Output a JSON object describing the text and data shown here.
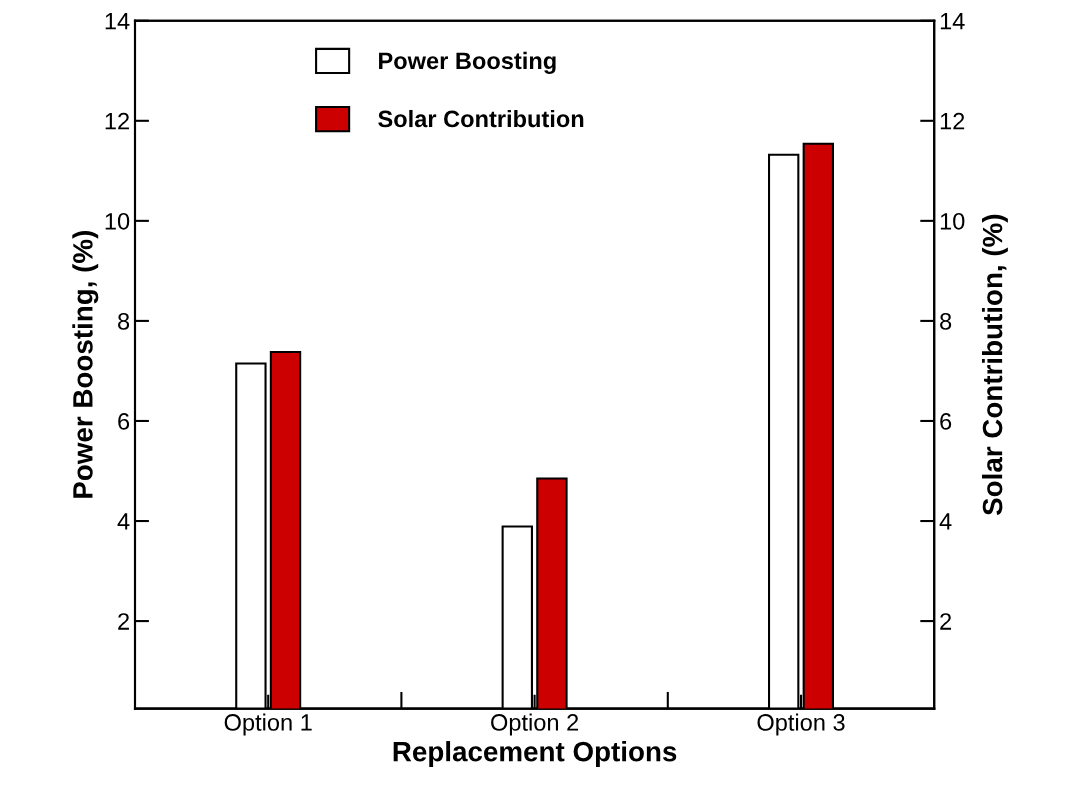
{
  "chart_data": {
    "type": "bar",
    "xlabel": "Replacement Options",
    "ylabel": "Power Boosting, (%)",
    "y2label": "Solar Contribution, (%)",
    "categories": [
      "Option 1",
      "Option 2",
      "Option 3"
    ],
    "series": [
      {
        "name": "Power Boosting",
        "color": "#ffffff",
        "values": [
          7.15,
          3.89,
          11.32
        ]
      },
      {
        "name": "Solar Contribution",
        "color": "#cc0000",
        "values": [
          7.38,
          4.85,
          11.54
        ],
        "axis": "y2"
      }
    ],
    "ylim": [
      0.25,
      14
    ],
    "yticks": [
      2,
      4,
      6,
      8,
      10,
      12,
      14
    ],
    "y2lim": [
      0.25,
      14
    ],
    "y2ticks": [
      2,
      4,
      6,
      8,
      10,
      12,
      14
    ],
    "grid": false,
    "legend": "top left"
  }
}
